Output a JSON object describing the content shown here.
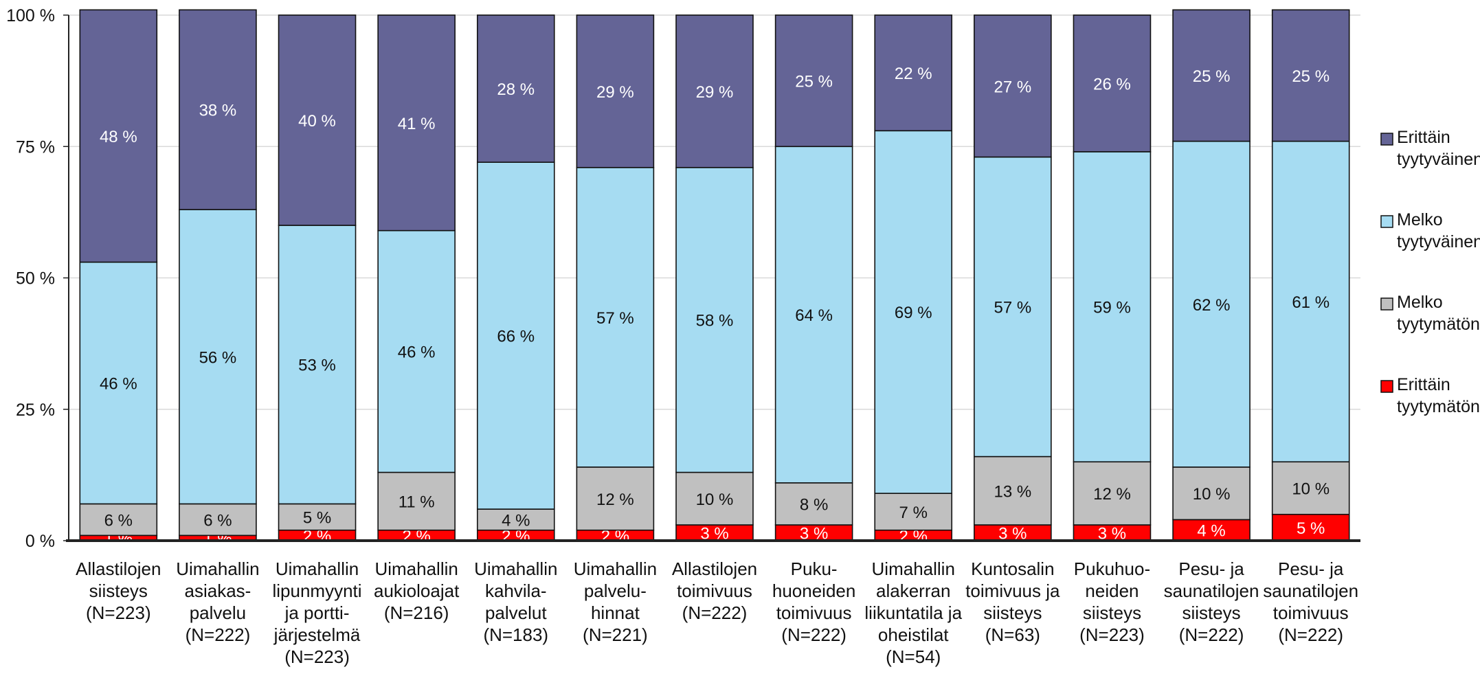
{
  "chart_data": {
    "type": "bar",
    "stacked": true,
    "ylim": [
      0,
      100
    ],
    "yticks": [
      "0 %",
      "25 %",
      "50 %",
      "75 %",
      "100 %"
    ],
    "grid": true,
    "legend_position": "right",
    "categories": [
      [
        "Allastilojen",
        "siisteys",
        "(N=223)"
      ],
      [
        "Uimahallin",
        "asiakas-",
        "palvelu",
        "(N=222)"
      ],
      [
        "Uimahallin",
        "lipunmyynti",
        "ja portti-",
        "järjestelmä",
        "(N=223)"
      ],
      [
        "Uimahallin",
        "aukioloajat",
        "(N=216)"
      ],
      [
        "Uimahallin",
        "kahvila-",
        "palvelut",
        "(N=183)"
      ],
      [
        "Uimahallin",
        "palvelu-",
        "hinnat",
        "(N=221)"
      ],
      [
        "Allastilojen",
        "toimivuus",
        "(N=222)"
      ],
      [
        "Puku-",
        "huoneiden",
        "toimivuus",
        "(N=222)"
      ],
      [
        "Uimahallin",
        "alakerran",
        "liikuntatila ja",
        "oheistilat",
        "(N=54)"
      ],
      [
        "Kuntosalin",
        "toimivuus ja",
        "siisteys",
        "(N=63)"
      ],
      [
        "Pukuhuo-",
        "neiden",
        "siisteys",
        "(N=223)"
      ],
      [
        "Pesu- ja",
        "saunatilojen",
        "siisteys",
        "(N=222)"
      ],
      [
        "Pesu- ja",
        "saunatilojen",
        "toimivuus",
        "(N=222)"
      ]
    ],
    "series": [
      {
        "name": "Erittäin tyytymätön",
        "color": "#ff0000",
        "label_color": "#ffffff",
        "values": [
          1,
          1,
          2,
          2,
          2,
          2,
          3,
          3,
          2,
          3,
          3,
          4,
          5
        ],
        "labels": [
          "1 %",
          "1 %",
          "2 %",
          "2 %",
          "2 %",
          "2 %",
          "3 %",
          "3 %",
          "2 %",
          "3 %",
          "3 %",
          "4 %",
          "5 %"
        ]
      },
      {
        "name": "Melko tyytymätön",
        "color": "#c0c0c0",
        "label_color": "#111111",
        "values": [
          6,
          6,
          5,
          11,
          4,
          12,
          10,
          8,
          7,
          13,
          12,
          10,
          10
        ],
        "labels": [
          "6 %",
          "6 %",
          "5 %",
          "11 %",
          "4 %",
          "12 %",
          "10 %",
          "8 %",
          "7 %",
          "13 %",
          "12 %",
          "10 %",
          "10 %"
        ]
      },
      {
        "name": "Melko tyytyväinen",
        "color": "#a6dcf2",
        "label_color": "#111111",
        "values": [
          46,
          56,
          53,
          46,
          66,
          57,
          58,
          64,
          69,
          57,
          59,
          62,
          61
        ],
        "labels": [
          "46 %",
          "56 %",
          "53 %",
          "46 %",
          "66 %",
          "57 %",
          "58 %",
          "64 %",
          "69 %",
          "57 %",
          "59 %",
          "62 %",
          "61 %"
        ]
      },
      {
        "name": "Erittäin tyytyväinen",
        "color": "#646496",
        "label_color": "#ffffff",
        "values": [
          48,
          38,
          40,
          41,
          28,
          29,
          29,
          25,
          22,
          27,
          26,
          25,
          25
        ],
        "labels": [
          "48 %",
          "38 %",
          "40 %",
          "41 %",
          "28 %",
          "29 %",
          "29 %",
          "25 %",
          "22 %",
          "27 %",
          "26 %",
          "25 %",
          "25 %"
        ]
      }
    ],
    "legend": [
      {
        "lines": [
          "Erittäin",
          "tyytyväinen"
        ],
        "color": "#646496"
      },
      {
        "lines": [
          "Melko",
          "tyytyväinen"
        ],
        "color": "#a6dcf2"
      },
      {
        "lines": [
          "Melko",
          "tyytymätön"
        ],
        "color": "#c0c0c0"
      },
      {
        "lines": [
          "Erittäin",
          "tyytymätön"
        ],
        "color": "#ff0000"
      }
    ]
  }
}
